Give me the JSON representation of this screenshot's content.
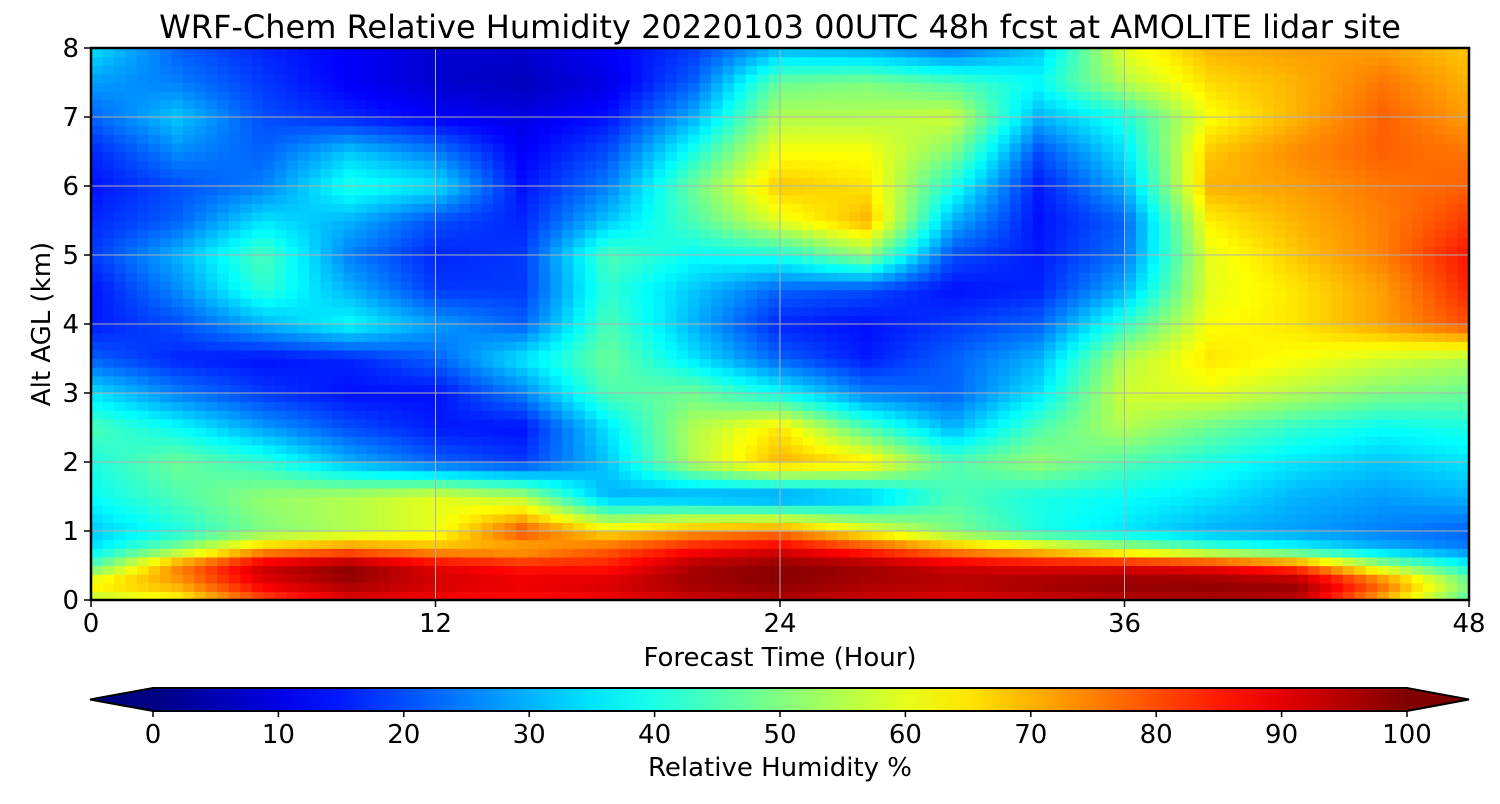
{
  "chart_data": {
    "type": "heatmap",
    "title": "WRF-Chem Relative Humidity 20220103 00UTC 48h fcst at AMOLITE lidar site",
    "xlabel": "Forecast Time (Hour)",
    "ylabel": "Alt AGL (km)",
    "xlim": [
      0,
      48
    ],
    "ylim": [
      0,
      8
    ],
    "xticks": [
      0,
      12,
      24,
      36,
      48
    ],
    "yticks": [
      0,
      1,
      2,
      3,
      4,
      5,
      6,
      7,
      8
    ],
    "grid": true,
    "colormap": "jet",
    "colorbar": {
      "label": "Relative Humidity %",
      "range": [
        0,
        100
      ],
      "ticks": [
        0,
        10,
        20,
        30,
        40,
        50,
        60,
        70,
        80,
        90,
        100
      ],
      "extend": "both",
      "orientation": "horizontal"
    },
    "x": [
      0,
      3,
      6,
      9,
      12,
      15,
      18,
      21,
      24,
      27,
      30,
      33,
      36,
      39,
      42,
      45,
      48
    ],
    "y": [
      0,
      0.25,
      0.5,
      0.75,
      1,
      1.5,
      2,
      2.5,
      3,
      3.5,
      4,
      4.5,
      5,
      5.5,
      6,
      6.5,
      7,
      7.5,
      8
    ],
    "z": [
      [
        55,
        62,
        80,
        90,
        88,
        86,
        88,
        92,
        95,
        92,
        90,
        92,
        94,
        95,
        94,
        70,
        45
      ],
      [
        65,
        72,
        90,
        97,
        92,
        90,
        92,
        97,
        99,
        96,
        95,
        97,
        99,
        99,
        98,
        78,
        50
      ],
      [
        45,
        75,
        93,
        99,
        90,
        85,
        85,
        96,
        99,
        97,
        92,
        90,
        90,
        88,
        80,
        55,
        38
      ],
      [
        35,
        50,
        70,
        75,
        70,
        70,
        78,
        86,
        90,
        82,
        72,
        65,
        55,
        45,
        38,
        30,
        25
      ],
      [
        32,
        40,
        50,
        55,
        60,
        80,
        65,
        72,
        75,
        62,
        50,
        40,
        35,
        30,
        28,
        25,
        22
      ],
      [
        38,
        45,
        52,
        55,
        60,
        55,
        30,
        28,
        25,
        30,
        45,
        40,
        38,
        35,
        30,
        28,
        30
      ],
      [
        40,
        48,
        42,
        30,
        22,
        18,
        32,
        55,
        70,
        65,
        45,
        52,
        45,
        40,
        35,
        32,
        35
      ],
      [
        45,
        38,
        28,
        20,
        15,
        14,
        35,
        55,
        65,
        45,
        30,
        45,
        55,
        48,
        42,
        38,
        40
      ],
      [
        35,
        25,
        18,
        14,
        14,
        25,
        45,
        48,
        38,
        25,
        22,
        35,
        58,
        60,
        55,
        50,
        48
      ],
      [
        22,
        16,
        14,
        16,
        22,
        35,
        48,
        35,
        22,
        15,
        22,
        30,
        55,
        65,
        62,
        58,
        55
      ],
      [
        15,
        20,
        30,
        38,
        28,
        22,
        45,
        30,
        16,
        14,
        18,
        22,
        42,
        62,
        65,
        72,
        80
      ],
      [
        14,
        26,
        42,
        30,
        18,
        18,
        42,
        32,
        22,
        20,
        14,
        16,
        30,
        60,
        65,
        72,
        84
      ],
      [
        18,
        30,
        45,
        25,
        16,
        18,
        45,
        38,
        40,
        52,
        20,
        15,
        24,
        60,
        68,
        75,
        86
      ],
      [
        16,
        22,
        35,
        30,
        20,
        16,
        32,
        45,
        60,
        70,
        30,
        14,
        22,
        64,
        70,
        75,
        82
      ],
      [
        14,
        20,
        25,
        40,
        35,
        14,
        25,
        48,
        68,
        65,
        40,
        15,
        30,
        70,
        72,
        76,
        78
      ],
      [
        16,
        26,
        22,
        32,
        25,
        12,
        20,
        40,
        62,
        62,
        50,
        20,
        35,
        68,
        74,
        78,
        76
      ],
      [
        22,
        32,
        20,
        16,
        12,
        10,
        14,
        30,
        55,
        55,
        58,
        30,
        40,
        62,
        70,
        78,
        72
      ],
      [
        28,
        25,
        18,
        12,
        8,
        6,
        10,
        22,
        48,
        50,
        45,
        38,
        55,
        66,
        70,
        76,
        70
      ],
      [
        35,
        22,
        16,
        12,
        8,
        8,
        12,
        18,
        30,
        28,
        22,
        32,
        60,
        70,
        72,
        72,
        68
      ]
    ]
  }
}
